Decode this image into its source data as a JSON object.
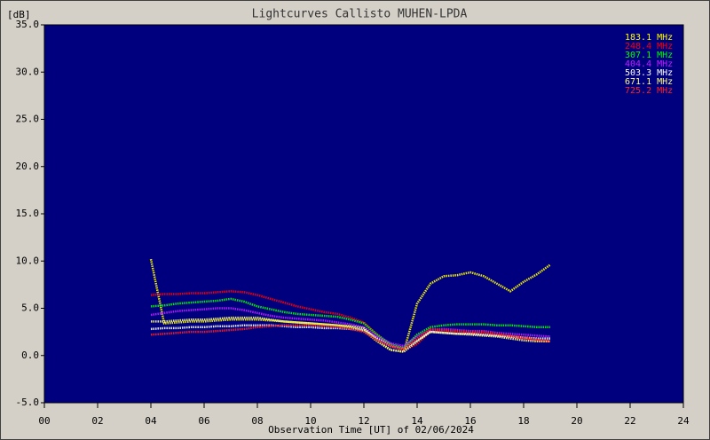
{
  "chart_data": {
    "type": "line",
    "title": "Lightcurves Callisto MUHEN-LPDA",
    "y_label": "[dB]",
    "x_label": "Observation Time [UT] of 02/06/2024",
    "legend": "upper right",
    "background": "#00007f",
    "xlim": [
      0,
      24
    ],
    "xticks": [
      {
        "value": 0,
        "label": "00"
      },
      {
        "value": 2,
        "label": "02"
      },
      {
        "value": 4,
        "label": "04"
      },
      {
        "value": 6,
        "label": "06"
      },
      {
        "value": 8,
        "label": "08"
      },
      {
        "value": 10,
        "label": "10"
      },
      {
        "value": 12,
        "label": "12"
      },
      {
        "value": 14,
        "label": "14"
      },
      {
        "value": 16,
        "label": "16"
      },
      {
        "value": 18,
        "label": "18"
      },
      {
        "value": 20,
        "label": "20"
      },
      {
        "value": 22,
        "label": "22"
      },
      {
        "value": 24,
        "label": "24"
      }
    ],
    "ylim": [
      -5,
      35
    ],
    "yticks": [
      {
        "value": 35,
        "label": "35.0"
      },
      {
        "value": 30,
        "label": "30.0"
      },
      {
        "value": 25,
        "label": "25.0"
      },
      {
        "value": 20,
        "label": "20.0"
      },
      {
        "value": 15,
        "label": "15.0"
      },
      {
        "value": 10,
        "label": "10.0"
      },
      {
        "value": 5,
        "label": "5.0"
      },
      {
        "value": 0,
        "label": "0.0"
      },
      {
        "value": -5,
        "label": "-5.0"
      }
    ],
    "x": [
      4,
      4.5,
      5,
      5.5,
      6,
      6.5,
      7,
      7.5,
      8,
      8.5,
      9,
      9.5,
      10,
      10.5,
      11,
      11.5,
      12,
      12.5,
      13,
      13.5,
      14,
      14.5,
      15,
      15.5,
      16,
      16.5,
      17,
      17.5,
      18,
      18.5,
      19
    ],
    "series": [
      {
        "name": "183.1 MHz",
        "color": "#ffff00",
        "values": [
          10.2,
          3.4,
          3.5,
          3.6,
          3.6,
          3.7,
          3.8,
          3.8,
          3.8,
          3.7,
          3.6,
          3.5,
          3.4,
          3.3,
          3.2,
          3.0,
          2.6,
          1.5,
          0.6,
          0.4,
          5.5,
          7.6,
          8.4,
          8.5,
          8.8,
          8.4,
          7.6,
          6.8,
          7.8,
          8.6,
          9.6
        ]
      },
      {
        "name": "248.4 MHz",
        "color": "#ff0000",
        "values": [
          6.4,
          6.5,
          6.5,
          6.6,
          6.6,
          6.7,
          6.8,
          6.7,
          6.4,
          6.0,
          5.6,
          5.2,
          4.9,
          4.6,
          4.4,
          4.0,
          3.5,
          2.2,
          1.0,
          0.6,
          1.2,
          2.6,
          2.6,
          2.5,
          2.4,
          2.4,
          2.2,
          2.0,
          1.8,
          1.6,
          1.5
        ]
      },
      {
        "name": "307.1 MHz",
        "color": "#00ff00",
        "values": [
          5.2,
          5.3,
          5.5,
          5.6,
          5.7,
          5.8,
          6.0,
          5.7,
          5.2,
          4.9,
          4.6,
          4.4,
          4.3,
          4.2,
          4.1,
          3.8,
          3.4,
          2.2,
          1.2,
          0.8,
          2.2,
          3.0,
          3.2,
          3.3,
          3.3,
          3.3,
          3.2,
          3.2,
          3.1,
          3.0,
          3.0
        ]
      },
      {
        "name": "404.4 MHz",
        "color": "#c020ff",
        "values": [
          4.3,
          4.5,
          4.7,
          4.8,
          4.9,
          5.0,
          5.0,
          4.8,
          4.5,
          4.2,
          4.0,
          3.9,
          3.8,
          3.7,
          3.5,
          3.3,
          3.0,
          2.0,
          1.3,
          1.0,
          2.0,
          2.7,
          2.8,
          2.7,
          2.6,
          2.6,
          2.4,
          2.3,
          2.2,
          2.1,
          2.0
        ]
      },
      {
        "name": "503.3 MHz",
        "color": "#ffffff",
        "values": [
          2.8,
          2.9,
          2.9,
          3.0,
          3.0,
          3.1,
          3.1,
          3.2,
          3.2,
          3.2,
          3.1,
          3.0,
          3.0,
          2.9,
          2.9,
          2.8,
          2.7,
          1.8,
          1.0,
          0.7,
          1.6,
          2.5,
          2.4,
          2.3,
          2.3,
          2.2,
          2.1,
          2.0,
          1.9,
          1.8,
          1.8
        ]
      },
      {
        "name": "671.1 MHz",
        "color": "#ffff80",
        "values": [
          3.6,
          3.6,
          3.7,
          3.8,
          3.8,
          3.9,
          4.0,
          4.0,
          4.0,
          3.8,
          3.6,
          3.5,
          3.4,
          3.3,
          3.2,
          3.1,
          2.9,
          1.6,
          0.6,
          0.4,
          1.5,
          2.5,
          2.4,
          2.3,
          2.2,
          2.1,
          2.0,
          1.8,
          1.6,
          1.5,
          1.5
        ]
      },
      {
        "name": "725.2 MHz",
        "color": "#ff2020",
        "values": [
          2.2,
          2.3,
          2.4,
          2.5,
          2.5,
          2.6,
          2.7,
          2.8,
          3.0,
          3.1,
          3.2,
          3.2,
          3.2,
          3.1,
          3.0,
          2.8,
          2.5,
          1.6,
          1.0,
          0.7,
          1.8,
          2.8,
          2.7,
          2.6,
          2.5,
          2.5,
          2.3,
          2.1,
          1.9,
          1.7,
          1.5
        ]
      }
    ]
  }
}
